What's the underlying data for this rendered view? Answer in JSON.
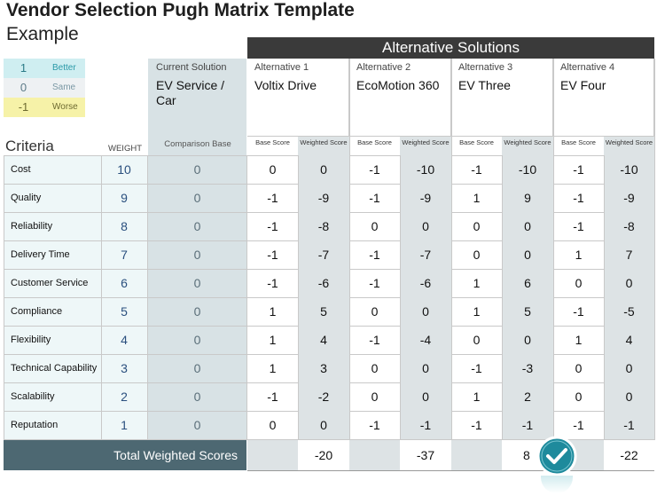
{
  "title": "Vendor Selection Pugh Matrix Template",
  "subtitle": "Example",
  "legend": [
    {
      "value": "1",
      "label": "Better",
      "bg": "#cfeef1",
      "fg": "#2a7a86"
    },
    {
      "value": "0",
      "label": "Same",
      "bg": "#eef1f3",
      "fg": "#5d7b88"
    },
    {
      "value": "-1",
      "label": "Worse",
      "bg": "#f6f2a8",
      "fg": "#6d6a30"
    }
  ],
  "alternatives_header": "Alternative Solutions",
  "current": {
    "label": "Current Solution",
    "name": "EV Service / Car",
    "base_label": "Comparison Base"
  },
  "alternatives": [
    {
      "label": "Alternative 1",
      "name": "Voltix Drive"
    },
    {
      "label": "Alternative 2",
      "name": "EcoMotion 360"
    },
    {
      "label": "Alternative 3",
      "name": "EV Three"
    },
    {
      "label": "Alternative 4",
      "name": "EV Four"
    }
  ],
  "sub_headers": {
    "base": "Base Score",
    "weighted": "Weighted Score"
  },
  "criteria_header": "Criteria",
  "weight_header": "WEIGHT",
  "rows": [
    {
      "criterion": "Cost",
      "weight": "10",
      "base": "0",
      "scores": [
        "0",
        "0",
        "-1",
        "-10",
        "-1",
        "-10",
        "-1",
        "-10"
      ]
    },
    {
      "criterion": "Quality",
      "weight": "9",
      "base": "0",
      "scores": [
        "-1",
        "-9",
        "-1",
        "-9",
        "1",
        "9",
        "-1",
        "-9"
      ]
    },
    {
      "criterion": "Reliability",
      "weight": "8",
      "base": "0",
      "scores": [
        "-1",
        "-8",
        "0",
        "0",
        "0",
        "0",
        "-1",
        "-8"
      ]
    },
    {
      "criterion": "Delivery Time",
      "weight": "7",
      "base": "0",
      "scores": [
        "-1",
        "-7",
        "-1",
        "-7",
        "0",
        "0",
        "1",
        "7"
      ]
    },
    {
      "criterion": "Customer Service",
      "weight": "6",
      "base": "0",
      "scores": [
        "-1",
        "-6",
        "-1",
        "-6",
        "1",
        "6",
        "0",
        "0"
      ]
    },
    {
      "criterion": "Compliance",
      "weight": "5",
      "base": "0",
      "scores": [
        "1",
        "5",
        "0",
        "0",
        "1",
        "5",
        "-1",
        "-5"
      ]
    },
    {
      "criterion": "Flexibility",
      "weight": "4",
      "base": "0",
      "scores": [
        "1",
        "4",
        "-1",
        "-4",
        "0",
        "0",
        "1",
        "4"
      ]
    },
    {
      "criterion": "Technical Capability",
      "weight": "3",
      "base": "0",
      "scores": [
        "1",
        "3",
        "0",
        "0",
        "-1",
        "-3",
        "0",
        "0"
      ]
    },
    {
      "criterion": "Scalability",
      "weight": "2",
      "base": "0",
      "scores": [
        "-1",
        "-2",
        "0",
        "0",
        "1",
        "2",
        "0",
        "0"
      ]
    },
    {
      "criterion": "Reputation",
      "weight": "1",
      "base": "0",
      "scores": [
        "0",
        "0",
        "-1",
        "-1",
        "-1",
        "-1",
        "-1",
        "-1"
      ]
    }
  ],
  "totals_label": "Total Weighted Scores",
  "totals": [
    "-20",
    "-37",
    "8",
    "-22"
  ],
  "winner_index": 2,
  "colors": {
    "dark_header": "#3a3a3a",
    "current_col": "#d8e2e5",
    "criteria_col": "#eef7f8",
    "total_bar": "#4d6872",
    "weighted_shade": "#dde3e5",
    "check_badge": "#1e8a9c"
  }
}
